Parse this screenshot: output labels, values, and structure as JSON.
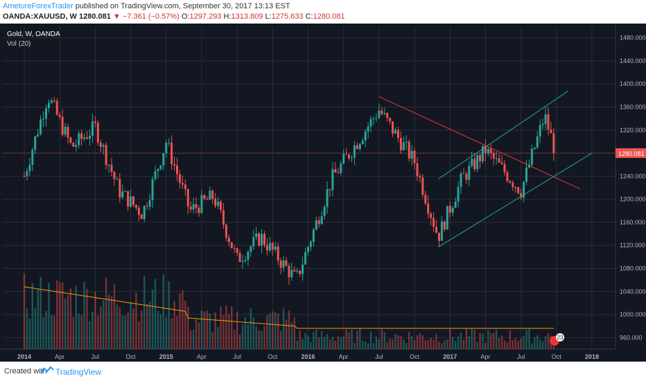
{
  "header": {
    "author": "AmetureForexTrader",
    "published": " published on TradingView.com, September 30, 2017 13:13 EST",
    "symbol": "OANDA:XAUUSD, W",
    "last": "1280.081",
    "change": "▼ −7.361 (−0.57%)",
    "o_label": "O:",
    "o": "1297.293",
    "h_label": "H:",
    "h": "1313.809",
    "l_label": "L:",
    "l": "1275.633",
    "c_label": "C:",
    "c": "1280.081"
  },
  "legend": {
    "title": "Gold, W, OANDA",
    "volume": "Vol (20)"
  },
  "footer": {
    "created": "Created with",
    "brand": "TradingView"
  },
  "colors": {
    "bg": "#131722",
    "up": "#26a69a",
    "down": "#ef5350",
    "grid": "#2a2e39",
    "price_line": "#ef5350",
    "trend_down": "#e53935",
    "channel": "#26a69a",
    "vol_ma": "#ff9800"
  },
  "badge": "23",
  "chart_data": {
    "type": "candlestick",
    "symbol": "Gold, W, OANDA",
    "current_price": 1280.081,
    "ylim": [
      940,
      1500
    ],
    "y_ticks": [
      "1480.000",
      "1440.000",
      "1400.000",
      "1360.000",
      "1320.000",
      "1280.000",
      "1240.000",
      "1200.000",
      "1160.000",
      "1120.000",
      "1080.000",
      "1040.000",
      "1000.000",
      "960.000"
    ],
    "x_ticks": [
      "2014",
      "Apr",
      "Jul",
      "Oct",
      "2015",
      "Apr",
      "Jul",
      "Oct",
      "2016",
      "Apr",
      "Jul",
      "Oct",
      "2017",
      "Apr",
      "Jul",
      "Oct",
      "2018"
    ],
    "price_series_approx": [
      {
        "t": "2014-01",
        "close": 1240
      },
      {
        "t": "2014-03",
        "close": 1380
      },
      {
        "t": "2014-05",
        "close": 1290
      },
      {
        "t": "2014-07",
        "close": 1325
      },
      {
        "t": "2014-09",
        "close": 1215
      },
      {
        "t": "2014-11",
        "close": 1175
      },
      {
        "t": "2015-01",
        "close": 1300
      },
      {
        "t": "2015-03",
        "close": 1180
      },
      {
        "t": "2015-05",
        "close": 1205
      },
      {
        "t": "2015-07",
        "close": 1095
      },
      {
        "t": "2015-09",
        "close": 1135
      },
      {
        "t": "2015-12",
        "close": 1060
      },
      {
        "t": "2016-03",
        "close": 1235
      },
      {
        "t": "2016-07",
        "close": 1355
      },
      {
        "t": "2016-10",
        "close": 1265
      },
      {
        "t": "2016-12",
        "close": 1135
      },
      {
        "t": "2017-02",
        "close": 1235
      },
      {
        "t": "2017-04",
        "close": 1285
      },
      {
        "t": "2017-07",
        "close": 1215
      },
      {
        "t": "2017-09",
        "close": 1345
      },
      {
        "t": "2017-09-30",
        "close": 1280.081
      }
    ],
    "drawings": [
      {
        "name": "descending trendline",
        "from": {
          "t": "2016-07",
          "price": 1378
        },
        "to": {
          "t": "2017-12",
          "price": 1218
        }
      },
      {
        "name": "ascending channel upper",
        "from": {
          "t": "2016-12",
          "price": 1235
        },
        "to": {
          "t": "2017-11",
          "price": 1388
        }
      },
      {
        "name": "ascending channel lower",
        "from": {
          "t": "2016-12",
          "price": 1117
        },
        "to": {
          "t": "2018-01",
          "price": 1280
        }
      }
    ],
    "volume_indicator": "Vol (20)"
  }
}
